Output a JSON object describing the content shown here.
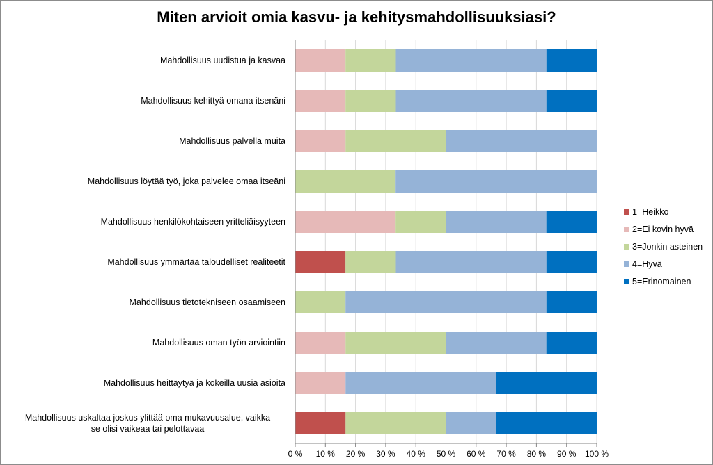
{
  "chart_data": {
    "type": "bar",
    "orientation": "horizontal",
    "stacked": "percent",
    "title": "Miten arvioit omia kasvu- ja kehitysmahdollisuuksiasi?",
    "categories": [
      "Mahdollisuus uudistua ja kasvaa",
      "Mahdollisuus kehittyä omana itsenäni",
      "Mahdollisuus palvella muita",
      "Mahdollisuus löytää työ, joka palvelee omaa itseäni",
      "Mahdollisuus henkilökohtaiseen yritteliäisyyteen",
      "Mahdollisuus ymmärtää taloudelliset realiteetit",
      "Mahdollisuus tietotekniseen osaamiseen",
      "Mahdollisuus oman työn arviointiin",
      "Mahdollisuus heittäytyä ja kokeilla uusia asioita",
      "Mahdollisuus uskaltaa joskus ylittää oma mukavuusalue, vaikka se olisi vaikeaa tai pelottavaa"
    ],
    "series": [
      {
        "name": "1=Heikko",
        "color": "#c0504d",
        "values": [
          0,
          0,
          0,
          0,
          0,
          16.7,
          0,
          0,
          0,
          16.7
        ]
      },
      {
        "name": "2=Ei kovin hyvä",
        "color": "#e6b9b8",
        "values": [
          16.7,
          16.7,
          16.7,
          0,
          33.3,
          0,
          0,
          16.7,
          16.7,
          0
        ]
      },
      {
        "name": "3=Jonkin asteinen",
        "color": "#c3d69b",
        "values": [
          16.7,
          16.7,
          33.3,
          33.3,
          16.7,
          16.7,
          16.7,
          33.3,
          0,
          33.3
        ]
      },
      {
        "name": "4=Hyvä",
        "color": "#95b3d7",
        "values": [
          50,
          50,
          50,
          66.7,
          33.3,
          50,
          66.7,
          33.3,
          50,
          16.7
        ]
      },
      {
        "name": "5=Erinomainen",
        "color": "#0070c0",
        "values": [
          16.7,
          16.7,
          0,
          0,
          16.7,
          16.7,
          16.7,
          16.7,
          33.3,
          33.3
        ]
      }
    ],
    "xlim": [
      0,
      100
    ],
    "x_ticks": [
      "0 %",
      "10 %",
      "20 %",
      "30 %",
      "40 %",
      "50 %",
      "60 %",
      "70 %",
      "80 %",
      "90 %",
      "100 %"
    ],
    "grid": true,
    "legend_position": "right"
  }
}
